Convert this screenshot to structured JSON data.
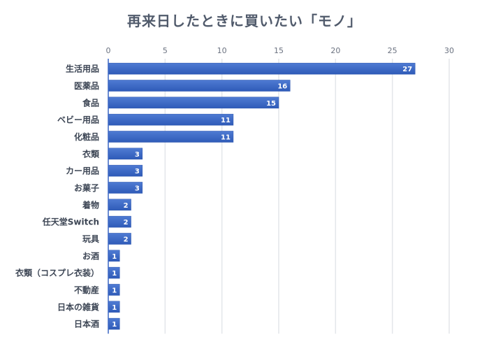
{
  "chart_data": {
    "type": "bar",
    "orientation": "horizontal",
    "title": "再来日したときに買いたい「モノ」",
    "categories": [
      "生活用品",
      "医薬品",
      "食品",
      "ベビー用品",
      "化粧品",
      "衣類",
      "カー用品",
      "お菓子",
      "着物",
      "任天堂Switch",
      "玩具",
      "お酒",
      "衣類（コスプレ衣装）",
      "不動産",
      "日本の雑貨",
      "日本酒"
    ],
    "values": [
      27,
      16,
      15,
      11,
      11,
      3,
      3,
      3,
      2,
      2,
      2,
      1,
      1,
      1,
      1,
      1
    ],
    "xlim": [
      0,
      30
    ],
    "xticks": [
      "0",
      "5",
      "10",
      "15",
      "20",
      "25",
      "30"
    ],
    "grid": true,
    "data_labels": true,
    "bar_color": "#3b67c4",
    "xaxis_position": "top"
  }
}
